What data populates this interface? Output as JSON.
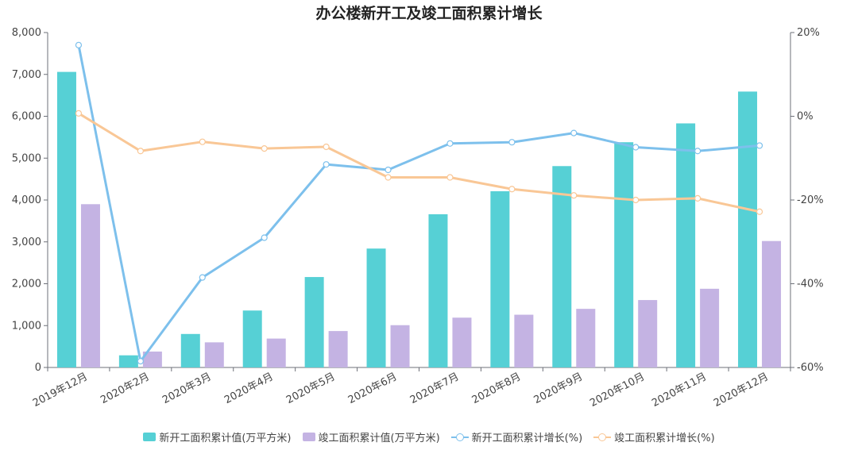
{
  "chart_data": {
    "type": "bar",
    "title": "办公楼新开工及竣工面积累计增长",
    "categories": [
      "2019年12月",
      "2020年2月",
      "2020年3月",
      "2020年4月",
      "2020年5月",
      "2020年6月",
      "2020年7月",
      "2020年8月",
      "2020年9月",
      "2020年10月",
      "2020年11月",
      "2020年12月"
    ],
    "left_axis": {
      "min": 0,
      "max": 8000,
      "ticks": [
        "0",
        "1,000",
        "2,000",
        "3,000",
        "4,000",
        "5,000",
        "6,000",
        "7,000",
        "8,000"
      ],
      "tick_values": [
        0,
        1000,
        2000,
        3000,
        4000,
        5000,
        6000,
        7000,
        8000
      ]
    },
    "right_axis": {
      "min": -60,
      "max": 20,
      "ticks": [
        "-60%",
        "-40%",
        "-20%",
        "0%",
        "20%"
      ],
      "tick_values": [
        -60,
        -40,
        -20,
        0,
        20
      ]
    },
    "series": [
      {
        "name": "新开工面积累计值(万平方米)",
        "type": "bar",
        "axis": "left",
        "color": "#56d0d5",
        "values": [
          7060,
          290,
          800,
          1360,
          2160,
          2840,
          3660,
          4210,
          4810,
          5380,
          5830,
          6590
        ]
      },
      {
        "name": "竣工面积累计值(万平方米)",
        "type": "bar",
        "axis": "left",
        "color": "#c4b3e3",
        "values": [
          3900,
          380,
          600,
          690,
          870,
          1010,
          1190,
          1260,
          1400,
          1610,
          1880,
          3020
        ]
      },
      {
        "name": "新开工面积累计增长(%)",
        "type": "line",
        "axis": "right",
        "color": "#7dc0ec",
        "values": [
          17,
          -58.5,
          -38.5,
          -29,
          -11.5,
          -12.8,
          -6.5,
          -6.2,
          -4,
          -7.4,
          -8.3,
          -7
        ]
      },
      {
        "name": "竣工面积累计增长(%)",
        "type": "line",
        "axis": "right",
        "color": "#f9c796",
        "values": [
          0.7,
          -8.3,
          -6.1,
          -7.7,
          -7.3,
          -14.6,
          -14.6,
          -17.4,
          -18.9,
          -20,
          -19.6,
          -22.8
        ]
      }
    ],
    "legend_position": "bottom",
    "grid": false
  }
}
